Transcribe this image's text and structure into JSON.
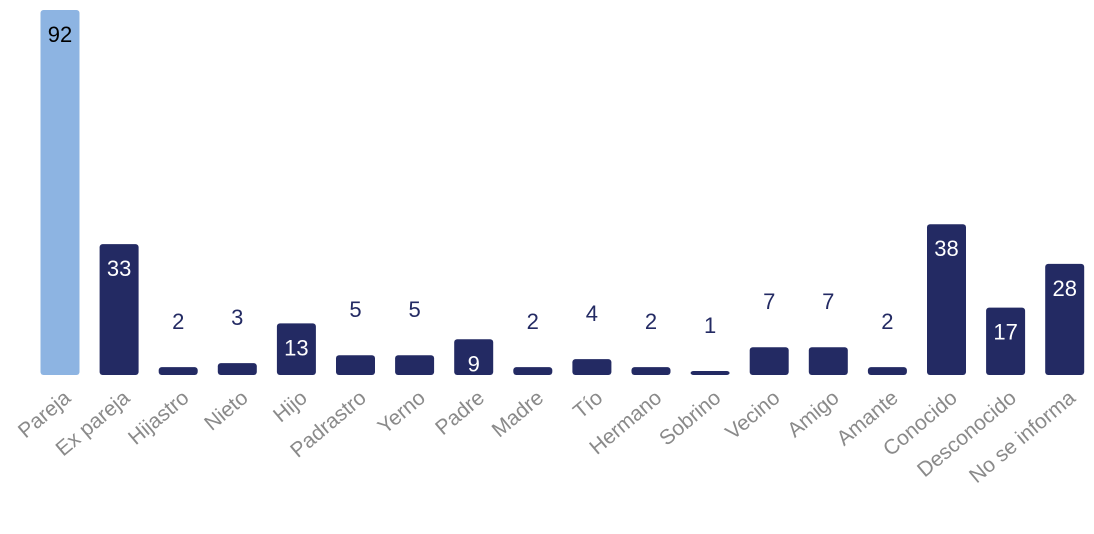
{
  "chart_data": {
    "type": "bar",
    "title": "",
    "xlabel": "",
    "ylabel": "",
    "ylim": [
      0,
      92
    ],
    "grid": false,
    "legend": "none",
    "categories": [
      "Pareja",
      "Ex pareja",
      "Hijastro",
      "Nieto",
      "Hijo",
      "Padrastro",
      "Yerno",
      "Padre",
      "Madre",
      "Tío",
      "Hermano",
      "Sobrino",
      "Vecino",
      "Amigo",
      "Amante",
      "Conocido",
      "Desconocido",
      "No se informa"
    ],
    "values": [
      92,
      33,
      2,
      3,
      13,
      5,
      5,
      9,
      2,
      4,
      2,
      1,
      7,
      7,
      2,
      38,
      17,
      28
    ],
    "value_labels": [
      "92",
      "33",
      "2",
      "3",
      "13",
      "5",
      "5",
      "9",
      "2",
      "4",
      "2",
      "1",
      "7",
      "7",
      "2",
      "38",
      "17",
      "28"
    ],
    "highlight_index": 0,
    "colors": {
      "bar": "#232a63",
      "highlight": "#8db4e2",
      "label_inside": "#ffffff",
      "label_inside_highlight": "#000000",
      "label_outside": "#232a63",
      "tick_label": "#8a8a8a"
    }
  }
}
